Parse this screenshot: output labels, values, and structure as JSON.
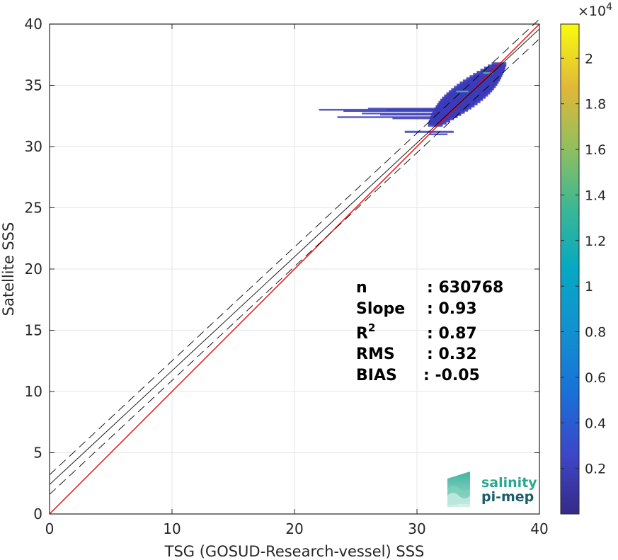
{
  "chart_data": {
    "type": "heatmap",
    "title": "",
    "xlabel": "TSG (GOSUD-Research-vessel) SSS",
    "ylabel": "Satellite SSS",
    "xlim": [
      0,
      40
    ],
    "ylim": [
      0,
      40
    ],
    "xticks": [
      0,
      10,
      20,
      30,
      40
    ],
    "yticks": [
      0,
      5,
      10,
      15,
      20,
      25,
      30,
      35,
      40
    ],
    "grid": true,
    "reference_line": {
      "slope": 1,
      "intercept": 0,
      "color": "#ff0000"
    },
    "regression_line": {
      "slope": 0.93,
      "intercept": 2.4,
      "color": "#000000"
    },
    "confidence_band_offset": 0.8,
    "stats": [
      {
        "key": "n",
        "value": ": 630768"
      },
      {
        "key": "Slope",
        "value": ": 0.93"
      },
      {
        "key": "R",
        "sup": "2",
        "value": ": 0.87"
      },
      {
        "key": "RMS",
        "value": ": 0.32"
      },
      {
        "key": "BIAS",
        "value": ": -0.05"
      }
    ],
    "density_cluster": {
      "x_range": [
        22,
        36.8
      ],
      "y_range": [
        31,
        36.7
      ],
      "color": "#3a3ab8"
    },
    "colorbar": {
      "colormap": "parula",
      "min": 0,
      "max": 21500,
      "ticks": [
        2000,
        4000,
        6000,
        8000,
        10000,
        12000,
        14000,
        16000,
        18000,
        20000
      ],
      "tick_labels": [
        "0.2",
        "0.4",
        "0.6",
        "0.8",
        "1",
        "1.2",
        "1.4",
        "1.6",
        "1.8",
        "2"
      ],
      "exponent_base": "×10",
      "exponent": "4"
    }
  },
  "logo": {
    "line1": "salinity",
    "line2": "pi-mep",
    "color1": "#2aa88e",
    "color2": "#1b5e6b"
  }
}
